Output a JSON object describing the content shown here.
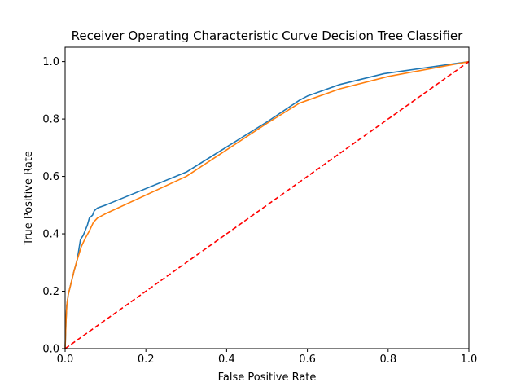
{
  "chart_data": {
    "type": "line",
    "title": "Receiver Operating Characteristic Curve Decision Tree Classifier",
    "xlabel": "False Positive Rate",
    "ylabel": "True Positive Rate",
    "xlim": [
      0.0,
      1.0
    ],
    "ylim": [
      0.0,
      1.05
    ],
    "grid": false,
    "legend": null,
    "x_ticks": [
      0.0,
      0.2,
      0.4,
      0.6,
      0.8,
      1.0
    ],
    "x_tick_labels": [
      "0.0",
      "0.2",
      "0.4",
      "0.6",
      "0.8",
      "1.0"
    ],
    "y_ticks": [
      0.0,
      0.2,
      0.4,
      0.6,
      0.8,
      1.0
    ],
    "y_tick_labels": [
      "0.0",
      "0.2",
      "0.4",
      "0.6",
      "0.8",
      "1.0"
    ],
    "series": [
      {
        "color": "#1f77b4",
        "style": "solid",
        "points": [
          [
            0.0,
            0.0
          ],
          [
            0.002,
            0.09
          ],
          [
            0.004,
            0.15
          ],
          [
            0.008,
            0.19
          ],
          [
            0.015,
            0.23
          ],
          [
            0.022,
            0.27
          ],
          [
            0.03,
            0.31
          ],
          [
            0.038,
            0.38
          ],
          [
            0.045,
            0.395
          ],
          [
            0.055,
            0.43
          ],
          [
            0.06,
            0.455
          ],
          [
            0.068,
            0.465
          ],
          [
            0.072,
            0.48
          ],
          [
            0.08,
            0.49
          ],
          [
            0.1,
            0.5
          ],
          [
            0.3,
            0.615
          ],
          [
            0.5,
            0.79
          ],
          [
            0.58,
            0.865
          ],
          [
            0.6,
            0.88
          ],
          [
            0.68,
            0.92
          ],
          [
            0.79,
            0.958
          ],
          [
            1.0,
            1.0
          ]
        ]
      },
      {
        "color": "#ff7f0e",
        "style": "solid",
        "points": [
          [
            0.0,
            0.0
          ],
          [
            0.002,
            0.09
          ],
          [
            0.004,
            0.15
          ],
          [
            0.008,
            0.19
          ],
          [
            0.015,
            0.23
          ],
          [
            0.022,
            0.27
          ],
          [
            0.03,
            0.31
          ],
          [
            0.04,
            0.355
          ],
          [
            0.05,
            0.385
          ],
          [
            0.06,
            0.41
          ],
          [
            0.07,
            0.44
          ],
          [
            0.08,
            0.455
          ],
          [
            0.1,
            0.47
          ],
          [
            0.3,
            0.6
          ],
          [
            0.5,
            0.785
          ],
          [
            0.58,
            0.855
          ],
          [
            0.6,
            0.865
          ],
          [
            0.68,
            0.905
          ],
          [
            0.8,
            0.948
          ],
          [
            1.0,
            1.0
          ]
        ]
      },
      {
        "color": "#ff0000",
        "style": "dashed",
        "points": [
          [
            0.0,
            0.0
          ],
          [
            1.0,
            1.0
          ]
        ]
      }
    ]
  }
}
